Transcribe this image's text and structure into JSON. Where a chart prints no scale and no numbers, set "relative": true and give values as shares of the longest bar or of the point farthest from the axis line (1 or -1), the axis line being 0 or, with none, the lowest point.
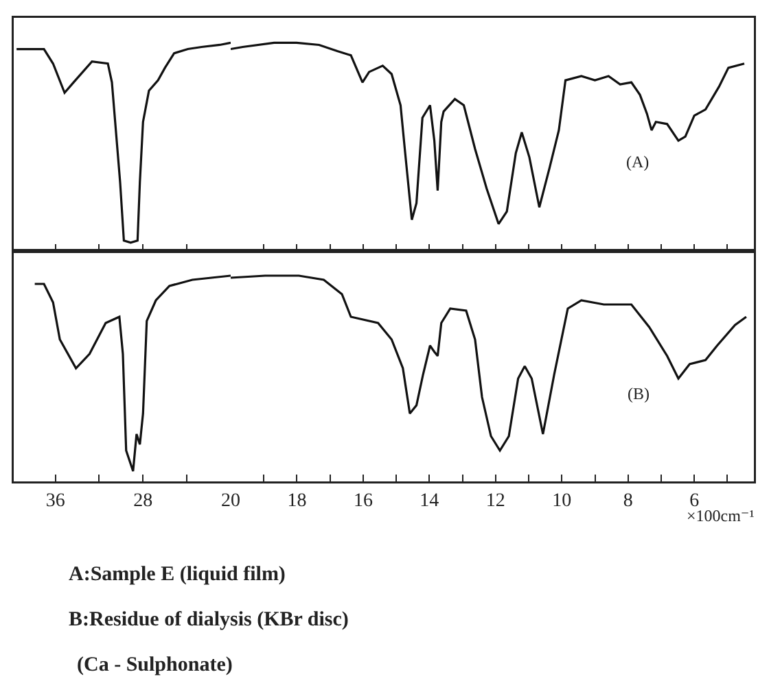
{
  "chart_data": [
    {
      "type": "line",
      "relative": true,
      "tick_labels": false,
      "grid": false,
      "marker": "none",
      "line_style": "solid",
      "xlim": [
        39.8,
        20
      ],
      "xticks": [
        {
          "value": 36,
          "label": null
        },
        {
          "value": 32,
          "label": null
        },
        {
          "value": 28,
          "label": null
        },
        {
          "value": 24,
          "label": null
        },
        {
          "value": 20,
          "label": null
        }
      ],
      "series": [
        {
          "color": "#111111",
          "x": [
            39.54,
            37.04,
            36.21,
            35.16,
            34.34,
            32.66,
            31.21,
            30.84,
            30.09,
            29.75,
            29.13,
            28.5,
            28.29,
            28.0,
            27.46,
            26.63,
            26.0,
            25.16,
            23.91,
            22.66,
            21.0,
            20.0
          ],
          "values": [
            0.97,
            0.97,
            0.9,
            0.76,
            0.81,
            0.91,
            0.9,
            0.81,
            0.33,
            0.05,
            0.04,
            0.05,
            0.33,
            0.62,
            0.77,
            0.82,
            0.88,
            0.95,
            0.97,
            0.98,
            0.99,
            1.0
          ]
        }
      ]
    },
    {
      "type": "line",
      "relative": true,
      "tick_labels": false,
      "grid": false,
      "marker": "none",
      "line_style": "solid",
      "xlim": [
        20,
        4.2
      ],
      "xticks": [
        {
          "value": 19,
          "label": null
        },
        {
          "value": 18,
          "label": null
        },
        {
          "value": 17,
          "label": null
        },
        {
          "value": 16,
          "label": null
        },
        {
          "value": 15,
          "label": null
        },
        {
          "value": 14,
          "label": null
        },
        {
          "value": 13,
          "label": null
        },
        {
          "value": 12,
          "label": null
        },
        {
          "value": 11,
          "label": null
        },
        {
          "value": 10,
          "label": null
        },
        {
          "value": 9,
          "label": null
        },
        {
          "value": 8,
          "label": null
        },
        {
          "value": 7,
          "label": null
        },
        {
          "value": 6,
          "label": null
        },
        {
          "value": 5,
          "label": null
        }
      ],
      "annotations": [
        "(A)"
      ],
      "series": [
        {
          "color": "#111111",
          "x": [
            20.0,
            19.64,
            18.69,
            18.01,
            17.33,
            16.78,
            16.37,
            16.02,
            15.82,
            15.41,
            15.14,
            14.87,
            14.73,
            14.53,
            14.39,
            14.21,
            13.98,
            13.85,
            13.75,
            13.64,
            13.57,
            13.23,
            12.96,
            12.62,
            12.27,
            11.91,
            11.66,
            11.39,
            11.21,
            10.98,
            10.68,
            10.37,
            10.09,
            9.89,
            9.41,
            9.0,
            8.59,
            8.24,
            7.9,
            7.64,
            7.43,
            7.29,
            7.16,
            6.82,
            6.48,
            6.27,
            6.0,
            5.66,
            5.25,
            4.97,
            4.49
          ],
          "values": [
            0.97,
            0.98,
            1.0,
            1.0,
            0.99,
            0.96,
            0.94,
            0.81,
            0.86,
            0.89,
            0.85,
            0.7,
            0.47,
            0.15,
            0.23,
            0.64,
            0.7,
            0.53,
            0.29,
            0.62,
            0.67,
            0.73,
            0.7,
            0.49,
            0.3,
            0.13,
            0.19,
            0.47,
            0.57,
            0.45,
            0.21,
            0.4,
            0.58,
            0.82,
            0.84,
            0.82,
            0.84,
            0.8,
            0.81,
            0.75,
            0.66,
            0.58,
            0.62,
            0.61,
            0.53,
            0.55,
            0.65,
            0.68,
            0.79,
            0.88,
            0.9
          ]
        }
      ]
    },
    {
      "type": "line",
      "relative": true,
      "tick_labels": "x",
      "grid": false,
      "marker": "none",
      "line_style": "solid",
      "xlim": [
        39.8,
        20
      ],
      "xticks": [
        36,
        {
          "value": 32,
          "label": null
        },
        28,
        {
          "value": 24,
          "label": null
        },
        20
      ],
      "series": [
        {
          "color": "#111111",
          "x": [
            37.88,
            37.04,
            36.21,
            35.59,
            34.12,
            32.88,
            31.41,
            30.16,
            29.84,
            29.54,
            28.91,
            28.59,
            28.29,
            28.0,
            27.66,
            26.83,
            25.59,
            23.5,
            20.0
          ],
          "values": [
            0.96,
            0.96,
            0.87,
            0.69,
            0.55,
            0.62,
            0.77,
            0.8,
            0.62,
            0.15,
            0.05,
            0.23,
            0.18,
            0.33,
            0.78,
            0.88,
            0.95,
            0.98,
            1.0
          ]
        }
      ]
    },
    {
      "type": "line",
      "relative": true,
      "tick_labels": "x",
      "grid": false,
      "marker": "none",
      "line_style": "solid",
      "xlabel": "×100cm⁻¹",
      "xlim": [
        20,
        4.2
      ],
      "xticks": [
        {
          "value": 19,
          "label": null
        },
        18,
        {
          "value": 17,
          "label": null
        },
        16,
        {
          "value": 15,
          "label": null
        },
        14,
        {
          "value": 13,
          "label": null
        },
        12,
        {
          "value": 11,
          "label": null
        },
        10,
        {
          "value": 9,
          "label": null
        },
        8,
        {
          "value": 7,
          "label": null
        },
        6,
        {
          "value": 5,
          "label": null
        }
      ],
      "annotations": [
        "(B)",
        "A:Sample E (liquid film)",
        "B:Residue of dialysis (KBr disc)",
        "(Ca - Sulphonate)"
      ],
      "series": [
        {
          "color": "#111111",
          "x": [
            20.0,
            18.96,
            17.94,
            17.19,
            16.64,
            16.37,
            15.55,
            15.14,
            14.8,
            14.59,
            14.39,
            14.19,
            13.98,
            13.85,
            13.75,
            13.64,
            13.37,
            12.89,
            12.62,
            12.41,
            12.14,
            11.87,
            11.6,
            11.32,
            11.12,
            10.91,
            10.57,
            10.23,
            9.82,
            9.41,
            8.73,
            7.9,
            7.36,
            6.82,
            6.48,
            6.14,
            5.66,
            5.31,
            4.77,
            4.43
          ],
          "values": [
            0.99,
            1.0,
            1.0,
            0.98,
            0.91,
            0.8,
            0.77,
            0.69,
            0.55,
            0.33,
            0.37,
            0.52,
            0.66,
            0.63,
            0.61,
            0.77,
            0.84,
            0.83,
            0.69,
            0.41,
            0.22,
            0.15,
            0.22,
            0.5,
            0.56,
            0.5,
            0.23,
            0.52,
            0.84,
            0.88,
            0.86,
            0.86,
            0.75,
            0.61,
            0.5,
            0.57,
            0.59,
            0.66,
            0.76,
            0.8
          ]
        }
      ]
    }
  ]
}
